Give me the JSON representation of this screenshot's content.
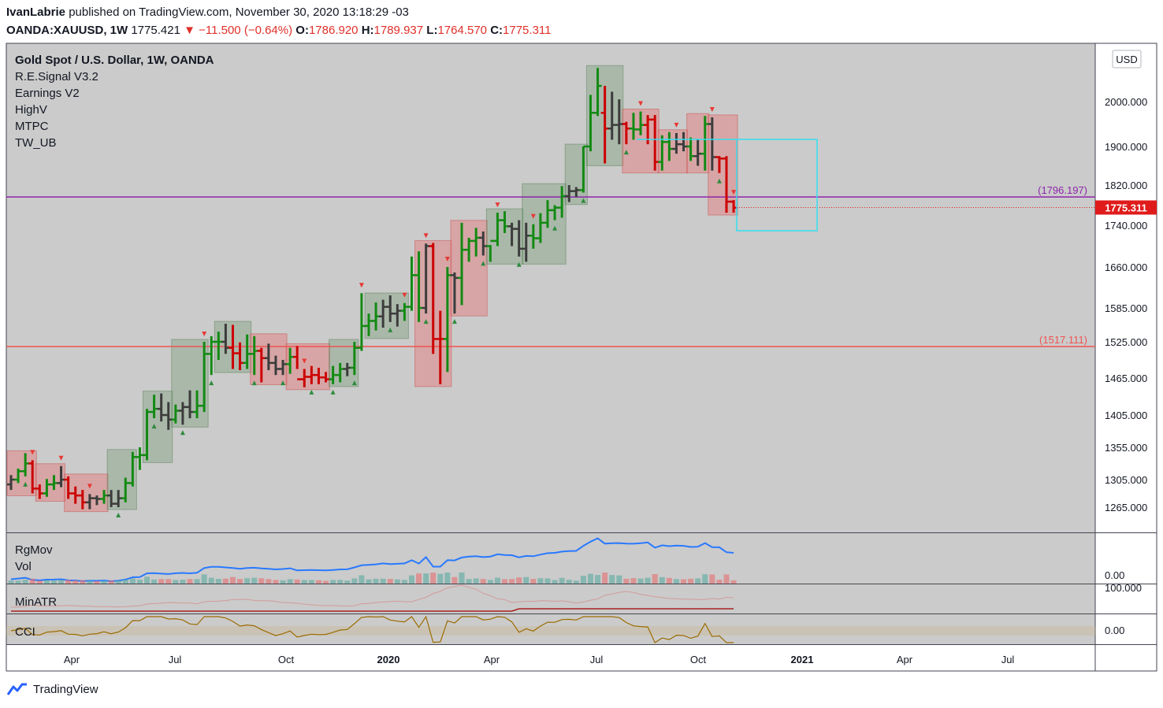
{
  "header": {
    "author": "IvanLabrie",
    "published_text": "published on TradingView.com, November 30, 2020 13:18:29 -03",
    "symbol": "OANDA:XAUUSD, 1W",
    "last": "1775.421",
    "change": "−11.500 (−0.64%)",
    "o_label": "O:",
    "o_val": "1786.920",
    "h_label": "H:",
    "h_val": "1789.937",
    "l_label": "L:",
    "l_val": "1764.570",
    "c_label": "C:",
    "c_val": "1775.311"
  },
  "legend": {
    "title": "Gold Spot / U.S. Dollar, 1W, OANDA",
    "studies": [
      "R.E.Signal V3.2",
      "Earnings V2",
      "HighV",
      "MTPC",
      "TW_UB"
    ]
  },
  "currency_badge": "USD",
  "panes": {
    "rgmov": "RgMov",
    "vol": "Vol",
    "minatr": "MinATR",
    "cci": "CCI",
    "vol_zero": "0.00",
    "minatr_top": "100.000",
    "cci_zero": "0.00"
  },
  "footer": {
    "brand": "TradingView"
  },
  "colors": {
    "up": "#138a13",
    "down": "#cc0000",
    "neutral": "#3c3c3c",
    "purple_line": "#8e24aa",
    "red_line": "#ef5350",
    "cyan_box": "#33e0f0",
    "pane_bg": "#cbcbcb",
    "last_price_bg": "#e01b1b"
  },
  "chart_data": {
    "type": "ohlc",
    "timeframe": "1W",
    "y_ticks": [
      1265,
      1305,
      1355,
      1405,
      1465,
      1525,
      1585,
      1660,
      1740,
      1820,
      1900,
      2000
    ],
    "y_tick_labels": [
      "1265.000",
      "1305.000",
      "1355.000",
      "1405.000",
      "1465.000",
      "1525.000",
      "1585.000",
      "1660.000",
      "1740.000",
      "1820.000",
      "1900.000",
      "2000.000"
    ],
    "x_tick_labels": [
      "Apr",
      "Jul",
      "Oct",
      "2020",
      "Apr",
      "Jul",
      "Oct",
      "2021",
      "Apr",
      "Jul"
    ],
    "horizontal_levels": [
      {
        "label": "(1796.197)",
        "value": 1796.197,
        "color": "#8e24aa"
      },
      {
        "label": "(1517.111)",
        "value": 1517.111,
        "color": "#ef5350"
      }
    ],
    "last_price": {
      "label": "1775.311",
      "value": 1775.311
    },
    "bars": [
      [
        1298,
        1312,
        1290,
        1305,
        "n"
      ],
      [
        1305,
        1322,
        1300,
        1318,
        "g"
      ],
      [
        1318,
        1346,
        1310,
        1330,
        "g"
      ],
      [
        1330,
        1335,
        1285,
        1292,
        "r"
      ],
      [
        1292,
        1298,
        1277,
        1285,
        "r"
      ],
      [
        1285,
        1306,
        1280,
        1298,
        "g"
      ],
      [
        1298,
        1312,
        1290,
        1300,
        "g"
      ],
      [
        1300,
        1326,
        1294,
        1305,
        "n"
      ],
      [
        1305,
        1310,
        1277,
        1285,
        "r"
      ],
      [
        1285,
        1295,
        1270,
        1282,
        "r"
      ],
      [
        1282,
        1290,
        1262,
        1272,
        "r"
      ],
      [
        1272,
        1284,
        1262,
        1278,
        "n"
      ],
      [
        1278,
        1282,
        1268,
        1277,
        "n"
      ],
      [
        1277,
        1290,
        1270,
        1282,
        "g"
      ],
      [
        1282,
        1290,
        1265,
        1270,
        "n"
      ],
      [
        1270,
        1290,
        1265,
        1278,
        "n"
      ],
      [
        1278,
        1308,
        1272,
        1300,
        "g"
      ],
      [
        1300,
        1348,
        1295,
        1340,
        "g"
      ],
      [
        1340,
        1355,
        1320,
        1343,
        "g"
      ],
      [
        1343,
        1415,
        1335,
        1410,
        "g"
      ],
      [
        1410,
        1438,
        1400,
        1415,
        "g"
      ],
      [
        1415,
        1440,
        1395,
        1405,
        "n"
      ],
      [
        1405,
        1426,
        1382,
        1398,
        "n"
      ],
      [
        1398,
        1422,
        1392,
        1412,
        "g"
      ],
      [
        1412,
        1426,
        1390,
        1418,
        "n"
      ],
      [
        1418,
        1445,
        1400,
        1410,
        "n"
      ],
      [
        1410,
        1445,
        1400,
        1420,
        "g"
      ],
      [
        1420,
        1525,
        1410,
        1505,
        "g"
      ],
      [
        1505,
        1535,
        1470,
        1525,
        "g"
      ],
      [
        1525,
        1543,
        1495,
        1525,
        "g"
      ],
      [
        1525,
        1557,
        1505,
        1515,
        "n"
      ],
      [
        1515,
        1555,
        1480,
        1506,
        "r"
      ],
      [
        1506,
        1524,
        1478,
        1490,
        "r"
      ],
      [
        1490,
        1538,
        1480,
        1505,
        "g"
      ],
      [
        1505,
        1535,
        1470,
        1510,
        "g"
      ],
      [
        1510,
        1515,
        1458,
        1498,
        "r"
      ],
      [
        1498,
        1522,
        1478,
        1490,
        "n"
      ],
      [
        1490,
        1502,
        1470,
        1480,
        "n"
      ],
      [
        1480,
        1495,
        1470,
        1488,
        "n"
      ],
      [
        1488,
        1515,
        1472,
        1500,
        "g"
      ],
      [
        1500,
        1518,
        1480,
        1463,
        "r"
      ],
      [
        1463,
        1480,
        1450,
        1467,
        "r"
      ],
      [
        1467,
        1485,
        1455,
        1470,
        "r"
      ],
      [
        1470,
        1482,
        1455,
        1466,
        "r"
      ],
      [
        1466,
        1475,
        1458,
        1463,
        "r"
      ],
      [
        1463,
        1485,
        1455,
        1470,
        "g"
      ],
      [
        1470,
        1490,
        1458,
        1480,
        "g"
      ],
      [
        1480,
        1490,
        1468,
        1482,
        "n"
      ],
      [
        1482,
        1525,
        1470,
        1515,
        "g"
      ],
      [
        1515,
        1612,
        1510,
        1553,
        "g"
      ],
      [
        1553,
        1575,
        1535,
        1562,
        "g"
      ],
      [
        1562,
        1595,
        1545,
        1570,
        "g"
      ],
      [
        1570,
        1600,
        1550,
        1587,
        "n"
      ],
      [
        1587,
        1608,
        1560,
        1575,
        "n"
      ],
      [
        1575,
        1592,
        1552,
        1580,
        "n"
      ],
      [
        1580,
        1594,
        1562,
        1587,
        "g"
      ],
      [
        1587,
        1680,
        1580,
        1645,
        "g"
      ],
      [
        1645,
        1690,
        1560,
        1585,
        "g"
      ],
      [
        1585,
        1705,
        1575,
        1700,
        "n"
      ],
      [
        1700,
        1706,
        1505,
        1530,
        "r"
      ],
      [
        1530,
        1580,
        1455,
        1530,
        "r"
      ],
      [
        1530,
        1660,
        1475,
        1645,
        "g"
      ],
      [
        1645,
        1650,
        1575,
        1640,
        "n"
      ],
      [
        1640,
        1745,
        1590,
        1693,
        "g"
      ],
      [
        1693,
        1716,
        1670,
        1710,
        "g"
      ],
      [
        1710,
        1735,
        1680,
        1716,
        "g"
      ],
      [
        1716,
        1728,
        1682,
        1700,
        "n"
      ],
      [
        1700,
        1702,
        1670,
        1710,
        "g"
      ],
      [
        1710,
        1765,
        1700,
        1750,
        "g"
      ],
      [
        1750,
        1768,
        1725,
        1738,
        "g"
      ],
      [
        1738,
        1745,
        1700,
        1733,
        "n"
      ],
      [
        1733,
        1750,
        1680,
        1695,
        "n"
      ],
      [
        1695,
        1745,
        1670,
        1720,
        "n"
      ],
      [
        1720,
        1742,
        1695,
        1715,
        "g"
      ],
      [
        1715,
        1764,
        1706,
        1745,
        "g"
      ],
      [
        1745,
        1790,
        1735,
        1770,
        "g"
      ],
      [
        1770,
        1780,
        1750,
        1775,
        "g"
      ],
      [
        1775,
        1818,
        1755,
        1798,
        "g"
      ],
      [
        1798,
        1820,
        1786,
        1808,
        "n"
      ],
      [
        1808,
        1816,
        1796,
        1810,
        "n"
      ],
      [
        1810,
        1900,
        1805,
        1900,
        "g"
      ],
      [
        1900,
        2015,
        1890,
        1975,
        "g"
      ],
      [
        1975,
        2075,
        1968,
        2035,
        "g"
      ],
      [
        1975,
        2035,
        1865,
        1940,
        "r"
      ],
      [
        1940,
        2022,
        1915,
        1948,
        "n"
      ],
      [
        1948,
        2005,
        1905,
        1950,
        "n"
      ],
      [
        1950,
        1955,
        1905,
        1940,
        "r"
      ],
      [
        1940,
        1975,
        1915,
        1938,
        "g"
      ],
      [
        1938,
        1978,
        1925,
        1948,
        "g"
      ],
      [
        1948,
        1970,
        1905,
        1960,
        "r"
      ],
      [
        1960,
        1970,
        1850,
        1868,
        "r"
      ],
      [
        1868,
        1925,
        1850,
        1910,
        "g"
      ],
      [
        1910,
        1932,
        1870,
        1895,
        "g"
      ],
      [
        1895,
        1930,
        1885,
        1905,
        "n"
      ],
      [
        1905,
        1932,
        1890,
        1900,
        "n"
      ],
      [
        1900,
        1920,
        1870,
        1880,
        "g"
      ],
      [
        1880,
        1915,
        1860,
        1885,
        "n"
      ],
      [
        1885,
        1968,
        1850,
        1950,
        "g"
      ],
      [
        1950,
        1965,
        1850,
        1878,
        "n"
      ],
      [
        1878,
        1880,
        1845,
        1875,
        "r"
      ],
      [
        1875,
        1880,
        1765,
        1787,
        "r"
      ],
      [
        1787,
        1790,
        1765,
        1775,
        "r"
      ]
    ]
  }
}
